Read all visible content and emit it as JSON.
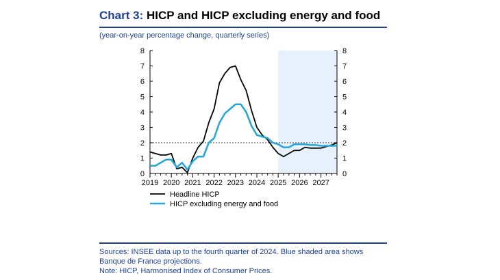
{
  "title": {
    "chart_number": "Chart 3",
    "separator": ":",
    "text": " HICP and HICP excluding energy and food"
  },
  "subtitle": "(year-on-year percentage change, quarterly series)",
  "footer": {
    "sources": "Sources: INSEE data up to the fourth quarter of 2024. Blue shaded area shows Banque de France projections.",
    "note": "Note: HICP, Harmonised Index of Consumer Prices."
  },
  "colors": {
    "headline": "#000000",
    "core": "#27a6dc",
    "projection_shade": "#e6f1fb",
    "text": "#1c3f94",
    "axis": "#000000"
  },
  "chart_data": {
    "type": "line",
    "x_tick_labels": [
      "2019",
      "2020",
      "2021",
      "2022",
      "2023",
      "2024",
      "2025",
      "2026",
      "2027"
    ],
    "xlim": [
      2019.0,
      2027.75
    ],
    "ylim": [
      0,
      8
    ],
    "y_ticks": [
      0,
      1,
      2,
      3,
      4,
      5,
      6,
      7,
      8
    ],
    "y_axis_both_sides": true,
    "projection_start": 2025.0,
    "reference_line": 2,
    "legend_position": "bottom",
    "series": [
      {
        "name": "Headline HICP",
        "color": "#000000",
        "points": [
          [
            2019.0,
            1.4
          ],
          [
            2019.25,
            1.3
          ],
          [
            2019.5,
            1.2
          ],
          [
            2019.75,
            1.2
          ],
          [
            2020.0,
            1.3
          ],
          [
            2020.25,
            0.3
          ],
          [
            2020.5,
            0.4
          ],
          [
            2020.75,
            0.05
          ],
          [
            2021.0,
            1.0
          ],
          [
            2021.25,
            1.7
          ],
          [
            2021.5,
            2.1
          ],
          [
            2021.75,
            3.3
          ],
          [
            2022.0,
            4.2
          ],
          [
            2022.25,
            5.9
          ],
          [
            2022.5,
            6.5
          ],
          [
            2022.75,
            6.9
          ],
          [
            2023.0,
            7.0
          ],
          [
            2023.25,
            6.1
          ],
          [
            2023.5,
            5.4
          ],
          [
            2023.75,
            4.1
          ],
          [
            2024.0,
            3.0
          ],
          [
            2024.25,
            2.5
          ],
          [
            2024.5,
            2.2
          ],
          [
            2024.75,
            1.7
          ],
          [
            2025.0,
            1.3
          ],
          [
            2025.25,
            1.1
          ],
          [
            2025.5,
            1.3
          ],
          [
            2025.75,
            1.5
          ],
          [
            2026.0,
            1.5
          ],
          [
            2026.25,
            1.7
          ],
          [
            2026.5,
            1.65
          ],
          [
            2026.75,
            1.65
          ],
          [
            2027.0,
            1.65
          ],
          [
            2027.25,
            1.75
          ],
          [
            2027.5,
            1.85
          ],
          [
            2027.75,
            2.0
          ]
        ]
      },
      {
        "name": "HICP excluding energy and food",
        "color": "#27a6dc",
        "points": [
          [
            2019.0,
            0.5
          ],
          [
            2019.25,
            0.5
          ],
          [
            2019.5,
            0.7
          ],
          [
            2019.75,
            0.9
          ],
          [
            2020.0,
            0.9
          ],
          [
            2020.25,
            0.4
          ],
          [
            2020.5,
            0.7
          ],
          [
            2020.75,
            0.25
          ],
          [
            2021.0,
            0.8
          ],
          [
            2021.25,
            1.1
          ],
          [
            2021.5,
            1.1
          ],
          [
            2021.75,
            2.0
          ],
          [
            2022.0,
            2.3
          ],
          [
            2022.25,
            3.3
          ],
          [
            2022.5,
            3.9
          ],
          [
            2022.75,
            4.2
          ],
          [
            2023.0,
            4.5
          ],
          [
            2023.25,
            4.5
          ],
          [
            2023.5,
            4.0
          ],
          [
            2023.75,
            3.1
          ],
          [
            2024.0,
            2.5
          ],
          [
            2024.25,
            2.4
          ],
          [
            2024.5,
            2.3
          ],
          [
            2024.75,
            2.0
          ],
          [
            2025.0,
            1.9
          ],
          [
            2025.25,
            1.7
          ],
          [
            2025.5,
            1.7
          ],
          [
            2025.75,
            1.9
          ],
          [
            2026.0,
            1.9
          ],
          [
            2026.25,
            1.9
          ],
          [
            2026.5,
            1.85
          ],
          [
            2026.75,
            1.85
          ],
          [
            2027.0,
            1.8
          ],
          [
            2027.25,
            1.8
          ],
          [
            2027.5,
            1.8
          ],
          [
            2027.75,
            1.8
          ]
        ]
      }
    ]
  }
}
